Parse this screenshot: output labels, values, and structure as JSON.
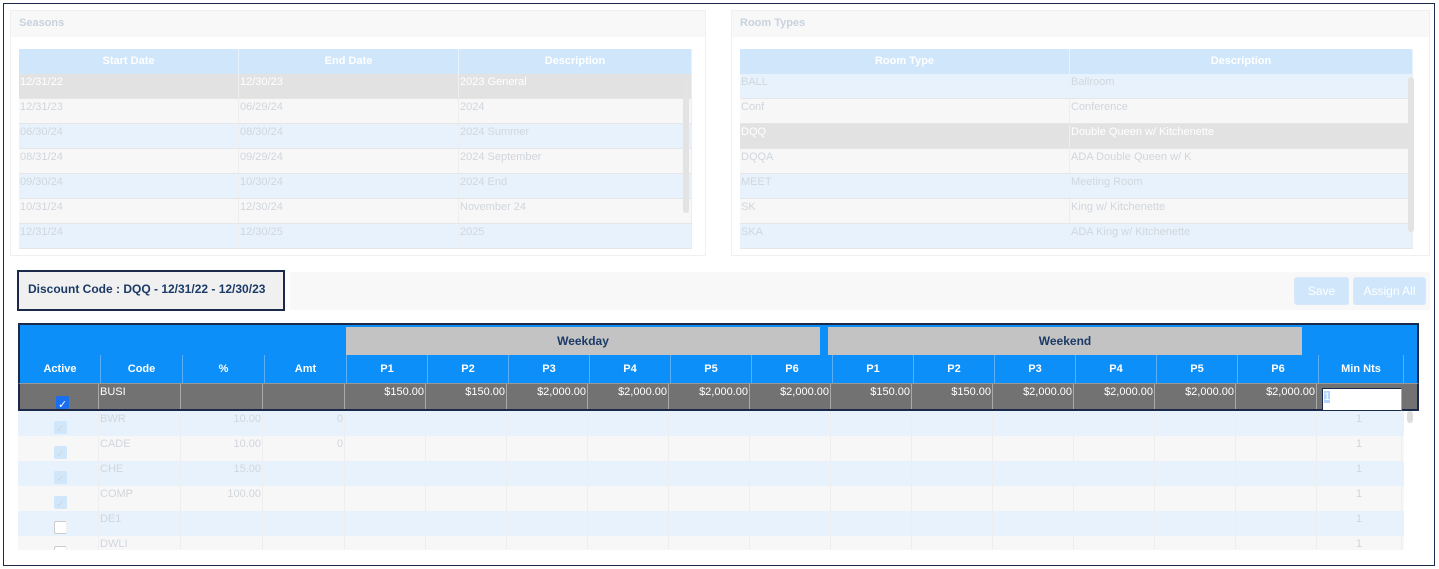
{
  "seasons": {
    "title": "Seasons",
    "headers": [
      "Start Date",
      "End Date",
      "Description"
    ],
    "rows": [
      [
        "12/31/22",
        "12/30/23",
        "2023 General"
      ],
      [
        "12/31/23",
        "06/29/24",
        "2024"
      ],
      [
        "06/30/24",
        "08/30/24",
        "2024 Summer"
      ],
      [
        "08/31/24",
        "09/29/24",
        "2024 September"
      ],
      [
        "09/30/24",
        "10/30/24",
        "2024 End"
      ],
      [
        "10/31/24",
        "12/30/24",
        "November 24"
      ],
      [
        "12/31/24",
        "12/30/25",
        "2025"
      ]
    ]
  },
  "room_types": {
    "title": "Room Types",
    "headers": [
      "Room Type",
      "Description"
    ],
    "rows": [
      [
        "BALL",
        "Ballroom"
      ],
      [
        "Conf",
        "Conference"
      ],
      [
        "DQQ",
        "Double Queen w/ Kitchenette"
      ],
      [
        "DQQA",
        "ADA Double Queen w/ K"
      ],
      [
        "MEET",
        "Meeting Room"
      ],
      [
        "SK",
        "King w/ Kitchenette"
      ],
      [
        "SKA",
        "ADA King w/ Kitchenette"
      ]
    ]
  },
  "discount_label": "Discount Code : DQQ - 12/31/22 - 12/30/23",
  "buttons": {
    "save": "Save",
    "assign_all": "Assign All"
  },
  "table": {
    "groups": {
      "weekday": "Weekday",
      "weekend": "Weekend"
    },
    "headers": [
      "Active",
      "Code",
      "%",
      "Amt",
      "P1",
      "P2",
      "P3",
      "P4",
      "P5",
      "P6",
      "P1",
      "P2",
      "P3",
      "P4",
      "P5",
      "P6",
      "Min Nts"
    ],
    "selected": {
      "active": true,
      "code": "BUSI",
      "pct": "",
      "amt": "",
      "prices": [
        "$150.00",
        "$150.00",
        "$2,000.00",
        "$2,000.00",
        "$2,000.00",
        "$2,000.00",
        "$150.00",
        "$150.00",
        "$2,000.00",
        "$2,000.00",
        "$2,000.00",
        "$2,000.00"
      ],
      "min_nts": "1"
    },
    "rows": [
      {
        "active": true,
        "code": "BWR",
        "pct": "10.00",
        "amt": "0",
        "min": "1"
      },
      {
        "active": true,
        "code": "CADE",
        "pct": "10.00",
        "amt": "0",
        "min": "1"
      },
      {
        "active": true,
        "code": "CHE",
        "pct": "15.00",
        "amt": "",
        "min": "1"
      },
      {
        "active": true,
        "code": "COMP",
        "pct": "100.00",
        "amt": "",
        "min": "1"
      },
      {
        "active": false,
        "code": "DE1",
        "pct": "",
        "amt": "",
        "min": "1"
      },
      {
        "active": false,
        "code": "DWLI",
        "pct": "",
        "amt": "",
        "min": "1"
      }
    ]
  }
}
